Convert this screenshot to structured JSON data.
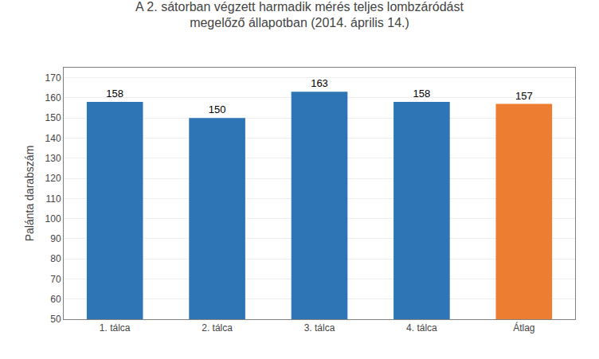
{
  "chart_data": {
    "type": "bar",
    "title": "A 2. sátorban végzett harmadik mérés teljes lombzáródást\nmegelőző állapotban (2014. április 14.)",
    "categories": [
      "1. tálca",
      "2. tálca",
      "3. tálca",
      "4. tálca",
      "Átlag"
    ],
    "values": [
      158,
      150,
      163,
      158,
      157
    ],
    "colors": [
      "#2E75B6",
      "#2E75B6",
      "#2E75B6",
      "#2E75B6",
      "#ED7D31"
    ],
    "ylabel": "Palánta darabszám",
    "ylim": [
      50,
      175
    ],
    "yticks": [
      50,
      60,
      70,
      80,
      90,
      100,
      110,
      120,
      130,
      140,
      150,
      160,
      170
    ],
    "grid": true,
    "data_labels": true
  }
}
